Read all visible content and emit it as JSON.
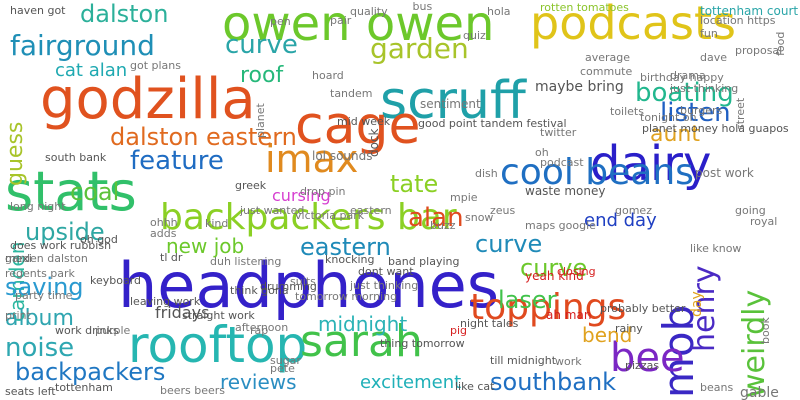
{
  "words": [
    {
      "text": "headphones",
      "color": "#3421c9"
    },
    {
      "text": "scruff",
      "color": "#1fa0a8"
    },
    {
      "text": "godzilla",
      "color": "#e0521f"
    },
    {
      "text": "owen owen",
      "color": "#6cc82b"
    },
    {
      "text": "podcasts",
      "color": "#e0c419"
    },
    {
      "text": "dairy",
      "color": "#2a1fc9"
    },
    {
      "text": "stats",
      "color": "#31c06a"
    },
    {
      "text": "rooftop",
      "color": "#26b6b1"
    },
    {
      "text": "cage",
      "color": "#e0521f"
    },
    {
      "text": "cool beans",
      "color": "#1f6fc2"
    },
    {
      "text": "backpackers bar",
      "color": "#8bd024"
    },
    {
      "text": "imax",
      "color": "#e08a1f"
    },
    {
      "text": "mob",
      "color": "#3a28c4"
    },
    {
      "text": "bee",
      "color": "#7b27c4"
    },
    {
      "text": "sarah",
      "color": "#41c24a"
    },
    {
      "text": "toppings",
      "color": "#e04a1f"
    },
    {
      "text": "fairground",
      "color": "#1f8fb6"
    },
    {
      "text": "curve",
      "color": "#2aa5a8"
    },
    {
      "text": "garden",
      "color": "#a8c42a"
    },
    {
      "text": "boating",
      "color": "#22b78e"
    },
    {
      "text": "roof",
      "color": "#26b87a"
    },
    {
      "text": "dalston eastern",
      "color": "#e06a1f"
    },
    {
      "text": "feature",
      "color": "#1f6cc2"
    },
    {
      "text": "dalston",
      "color": "#2cb09a"
    },
    {
      "text": "listen",
      "color": "#1f5fc2"
    },
    {
      "text": "aunt",
      "color": "#e0a21f"
    },
    {
      "text": "henry",
      "color": "#4a2ac4"
    },
    {
      "text": "weirdly",
      "color": "#59c23a"
    },
    {
      "text": "tate",
      "color": "#8bd024"
    },
    {
      "text": "alan",
      "color": "#e04a1f"
    },
    {
      "text": "eastern",
      "color": "#1f8ab8"
    },
    {
      "text": "curve",
      "color": "#1f8ab8"
    },
    {
      "text": "curve",
      "color": "#6cc82b"
    },
    {
      "text": "upside",
      "color": "#2fa7a3"
    },
    {
      "text": "coal",
      "color": "#5cc23a"
    },
    {
      "text": "guess",
      "color": "#a8c42a"
    },
    {
      "text": "cat alan",
      "color": "#1fa9b1"
    },
    {
      "text": "camden",
      "color": "#2db7a0"
    },
    {
      "text": "saving",
      "color": "#2a9ad0"
    },
    {
      "text": "album",
      "color": "#2fa5b0"
    },
    {
      "text": "noise",
      "color": "#2ea7b1"
    },
    {
      "text": "backpackers",
      "color": "#1f77c2"
    },
    {
      "text": "midnight",
      "color": "#2bb3b6"
    },
    {
      "text": "reviews",
      "color": "#2a8ec2"
    },
    {
      "text": "excitement",
      "color": "#1fb0b8"
    },
    {
      "text": "southbank",
      "color": "#1f6fc2"
    },
    {
      "text": "laser",
      "color": "#41c24a"
    },
    {
      "text": "bend",
      "color": "#e0a21f"
    },
    {
      "text": "new job",
      "color": "#6cc82b"
    },
    {
      "text": "end day",
      "color": "#1f3fc2"
    },
    {
      "text": "lol sounds",
      "color": "#777777"
    },
    {
      "text": "cursing",
      "color": "#d63fd0"
    },
    {
      "text": "fridays",
      "color": "#555555"
    },
    {
      "text": "dock",
      "color": "#555555"
    },
    {
      "text": "maybe bring",
      "color": "#555555"
    },
    {
      "text": "sentiment",
      "color": "#777777"
    },
    {
      "text": "waste money",
      "color": "#555555"
    },
    {
      "text": "gable",
      "color": "#777777"
    },
    {
      "text": "post work",
      "color": "#777777"
    },
    {
      "text": "day",
      "color": "#e0a21f"
    },
    {
      "text": "rotten tomatoes",
      "color": "#8ac42a"
    },
    {
      "text": "tottenham court",
      "color": "#2aa5a8"
    },
    {
      "text": "beans",
      "color": "#777777"
    },
    {
      "text": "good point tandem festival",
      "color": "#555555"
    },
    {
      "text": "planet money hola guapos",
      "color": "#555555"
    },
    {
      "text": "yeah kind",
      "color": "#d62020"
    },
    {
      "text": "ah man",
      "color": "#d62020"
    },
    {
      "text": "probably better",
      "color": "#555555"
    },
    {
      "text": "rainy",
      "color": "#555555"
    },
    {
      "text": "pizzas",
      "color": "#555555"
    },
    {
      "text": "tl dr",
      "color": "#555555"
    },
    {
      "text": "knocking",
      "color": "#555555"
    },
    {
      "text": "straight work",
      "color": "#555555"
    },
    {
      "text": "seats left",
      "color": "#555555"
    },
    {
      "text": "tottenham",
      "color": "#555555"
    },
    {
      "text": "like cat",
      "color": "#555555"
    },
    {
      "text": "haven got",
      "color": "#555555"
    },
    {
      "text": "mexi",
      "color": "#555555"
    },
    {
      "text": "south bank",
      "color": "#555555"
    },
    {
      "text": "mid week",
      "color": "#555555"
    },
    {
      "text": "greek",
      "color": "#555555"
    },
    {
      "text": "drumming",
      "color": "#555555"
    },
    {
      "text": "band playing",
      "color": "#555555"
    },
    {
      "text": "dont want",
      "color": "#555555"
    },
    {
      "text": "hola",
      "color": "#777777"
    },
    {
      "text": "quality",
      "color": "#777777"
    },
    {
      "text": "just thinking",
      "color": "#777777"
    },
    {
      "text": "burgers",
      "color": "#777777"
    },
    {
      "text": "street",
      "color": "#777777"
    },
    {
      "text": "birthday happy",
      "color": "#777777"
    },
    {
      "text": "proposal",
      "color": "#777777"
    },
    {
      "text": "tonight oh",
      "color": "#777777"
    },
    {
      "text": "regents park",
      "color": "#777777"
    },
    {
      "text": "garden dalston",
      "color": "#777777"
    },
    {
      "text": "long night",
      "color": "#777777"
    },
    {
      "text": "tandem",
      "color": "#777777"
    },
    {
      "text": "hoard",
      "color": "#777777"
    },
    {
      "text": "suits",
      "color": "#777777"
    },
    {
      "text": "pig",
      "color": "#d62020"
    },
    {
      "text": "till midnight",
      "color": "#555555"
    },
    {
      "text": "work drinks",
      "color": "#555555"
    },
    {
      "text": "think gona",
      "color": "#555555"
    },
    {
      "text": "night tales",
      "color": "#555555"
    },
    {
      "text": "thing tomorrow",
      "color": "#555555"
    },
    {
      "text": "does work rubbish",
      "color": "#555555"
    },
    {
      "text": "leaving work",
      "color": "#555555"
    },
    {
      "text": "keyboard",
      "color": "#555555"
    },
    {
      "text": "oh god",
      "color": "#555555"
    },
    {
      "text": "drop pin",
      "color": "#777777"
    },
    {
      "text": "closing",
      "color": "#d62020"
    },
    {
      "text": "podcast",
      "color": "#777777"
    },
    {
      "text": "got plans",
      "color": "#777777"
    },
    {
      "text": "beers beers",
      "color": "#777777"
    },
    {
      "text": "food",
      "color": "#777777"
    },
    {
      "text": "mpie",
      "color": "#777777"
    },
    {
      "text": "victoria park",
      "color": "#777777"
    },
    {
      "text": "commute",
      "color": "#777777"
    },
    {
      "text": "twitter",
      "color": "#777777"
    },
    {
      "text": "toilets",
      "color": "#777777"
    },
    {
      "text": "oh",
      "color": "#777777"
    },
    {
      "text": "fun",
      "color": "#777777"
    },
    {
      "text": "maps google",
      "color": "#777777"
    },
    {
      "text": "location https",
      "color": "#777777"
    },
    {
      "text": "pair",
      "color": "#777777"
    },
    {
      "text": "quiz",
      "color": "#777777"
    },
    {
      "text": "duh listening",
      "color": "#777777"
    },
    {
      "text": "kind",
      "color": "#777777"
    },
    {
      "text": "eastern",
      "color": "#777777"
    },
    {
      "text": "snow",
      "color": "#777777"
    },
    {
      "text": "going",
      "color": "#777777"
    },
    {
      "text": "pete",
      "color": "#777777"
    },
    {
      "text": "ohhh",
      "color": "#777777"
    },
    {
      "text": "adds",
      "color": "#777777"
    },
    {
      "text": "print",
      "color": "#777777"
    },
    {
      "text": "purple",
      "color": "#777777"
    },
    {
      "text": "afternoon",
      "color": "#777777"
    },
    {
      "text": "planet",
      "color": "#777777"
    },
    {
      "text": "royal",
      "color": "#777777"
    },
    {
      "text": "gomez",
      "color": "#777777"
    },
    {
      "text": "pen",
      "color": "#777777"
    },
    {
      "text": "book",
      "color": "#777777"
    },
    {
      "text": "like know",
      "color": "#777777"
    },
    {
      "text": "average",
      "color": "#777777"
    },
    {
      "text": "work",
      "color": "#777777"
    },
    {
      "text": "party time",
      "color": "#777777"
    },
    {
      "text": "zeus",
      "color": "#777777"
    },
    {
      "text": "sugar",
      "color": "#777777"
    },
    {
      "text": "dish",
      "color": "#777777"
    },
    {
      "text": "tomorrow morning",
      "color": "#777777"
    },
    {
      "text": "drama",
      "color": "#777777"
    },
    {
      "text": "just thinking",
      "color": "#777777"
    },
    {
      "text": "dave",
      "color": "#777777"
    },
    {
      "text": "just wanted",
      "color": "#777777"
    },
    {
      "text": "rap",
      "color": "#777777"
    },
    {
      "text": "buzz",
      "color": "#777777"
    },
    {
      "text": "bus",
      "color": "#777777"
    }
  ]
}
